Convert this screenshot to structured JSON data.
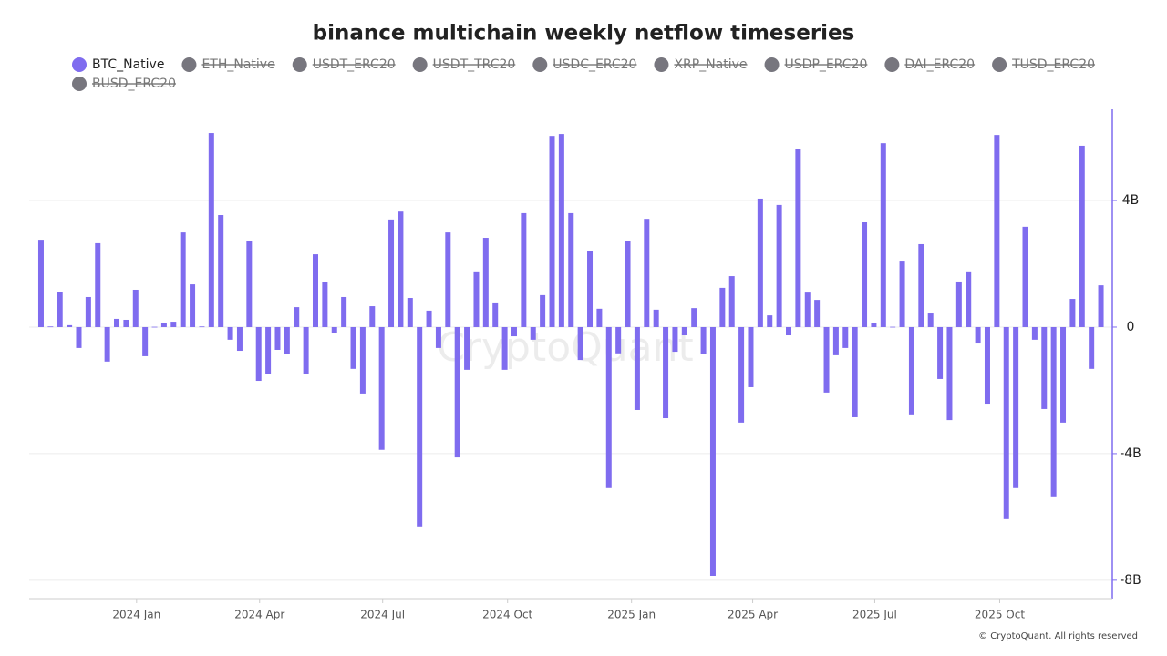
{
  "chart_data": {
    "type": "bar",
    "title": "binance multichain weekly netflow timeseries",
    "watermark": "CryptoQuant",
    "credit": "© CryptoQuant. All rights reserved",
    "series": [
      {
        "name": "BTC_Native",
        "color": "#7f6cef",
        "values": [
          2.76,
          0.02,
          1.12,
          0.06,
          -0.66,
          0.95,
          2.65,
          -1.09,
          0.26,
          0.23,
          1.18,
          -0.92,
          0.01,
          0.14,
          0.17,
          2.99,
          1.35,
          0.02,
          6.13,
          3.54,
          -0.4,
          -0.75,
          2.71,
          -1.7,
          -1.47,
          -0.72,
          -0.86,
          0.63,
          -1.47,
          2.3,
          1.41,
          -0.2,
          0.95,
          -1.32,
          -2.1,
          0.66,
          -3.88,
          3.4,
          3.65,
          0.92,
          -6.3,
          0.52,
          -0.66,
          2.99,
          -4.12,
          -1.35,
          1.76,
          2.82,
          0.75,
          -1.35,
          -0.29,
          3.6,
          -0.4,
          1.01,
          6.04,
          6.1,
          3.6,
          -1.04,
          2.39,
          0.58,
          -5.09,
          -0.83,
          2.71,
          -2.62,
          3.42,
          0.55,
          -2.88,
          -0.78,
          -0.26,
          0.6,
          -0.86,
          -7.86,
          1.24,
          1.61,
          -3.02,
          -1.9,
          4.06,
          0.37,
          3.86,
          -0.26,
          5.64,
          1.09,
          0.86,
          -2.07,
          -0.89,
          -0.66,
          -2.85,
          3.31,
          0.12,
          5.81,
          0.01,
          2.07,
          -2.76,
          2.62,
          0.43,
          -1.64,
          -2.94,
          1.44,
          1.76,
          -0.52,
          -2.42,
          6.07,
          -6.07,
          -5.09,
          3.17,
          -0.4,
          -2.59,
          -5.35,
          -3.02,
          0.89,
          5.73,
          -1.32,
          1.32
        ]
      }
    ],
    "hidden_series": [
      {
        "name": "ETH_Native"
      },
      {
        "name": "USDT_ERC20"
      },
      {
        "name": "USDT_TRC20"
      },
      {
        "name": "USDC_ERC20"
      },
      {
        "name": "XRP_Native"
      },
      {
        "name": "USDP_ERC20"
      },
      {
        "name": "DAI_ERC20"
      },
      {
        "name": "TUSD_ERC20"
      },
      {
        "name": "BUSD_ERC20"
      }
    ],
    "hidden_color": "#77767e",
    "x": [
      0,
      1,
      2,
      3,
      4,
      5,
      6,
      7,
      8,
      9,
      10,
      11,
      12,
      13,
      14,
      15,
      16,
      17,
      18,
      19,
      20,
      21,
      22,
      23,
      24,
      25,
      26,
      27,
      28,
      29,
      30,
      31,
      32,
      33,
      34,
      35,
      36,
      37,
      38,
      39,
      40,
      41,
      42,
      43,
      44,
      45,
      46,
      47,
      48,
      49,
      50,
      51,
      52,
      53,
      54,
      55,
      56,
      57,
      58,
      59,
      60,
      61,
      62,
      63,
      64,
      65,
      66,
      67,
      68,
      69,
      70,
      71,
      72,
      73,
      74,
      75,
      76,
      77,
      78,
      79,
      80,
      81,
      82,
      83,
      84,
      85,
      86,
      87,
      88,
      89,
      90,
      91,
      92,
      93,
      94,
      95,
      96,
      97,
      98,
      99,
      100,
      101,
      102,
      103,
      104,
      105,
      106,
      107,
      108,
      109,
      110,
      111,
      112
    ],
    "xlim": [
      -1.25,
      113.2
    ],
    "xticks": [
      {
        "value": 10.1,
        "label": "2024 Jan"
      },
      {
        "value": 23.1,
        "label": "2024 Apr"
      },
      {
        "value": 36.1,
        "label": "2024 Jul"
      },
      {
        "value": 49.3,
        "label": "2024 Oct"
      },
      {
        "value": 62.4,
        "label": "2025 Jan"
      },
      {
        "value": 75.2,
        "label": "2025 Apr"
      },
      {
        "value": 88.1,
        "label": "2025 Jul"
      },
      {
        "value": 101.3,
        "label": "2025 Oct"
      }
    ],
    "ylim": [
      -8.58,
      6.88
    ],
    "yticks": [
      {
        "value": -8,
        "label": "-8B"
      },
      {
        "value": -4,
        "label": "-4B"
      },
      0,
      {
        "value": 4,
        "label": "4B"
      }
    ],
    "grid": true
  }
}
